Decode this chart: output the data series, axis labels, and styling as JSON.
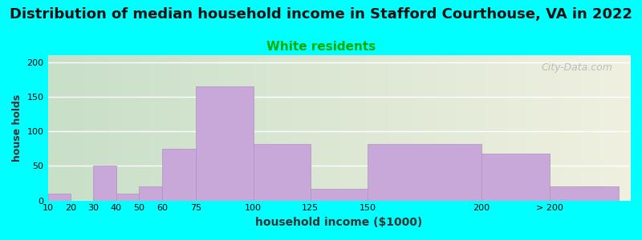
{
  "title": "Distribution of median household income in Stafford Courthouse, VA in 2022",
  "subtitle": "White residents",
  "xlabel": "household income ($1000)",
  "ylabel": "house holds",
  "background_color": "#00FFFF",
  "plot_bg_gradient_left": "#c8e6c9",
  "plot_bg_gradient_right": "#f5f5dc",
  "bar_color": "#c8a8d8",
  "bar_edge_color": "#b090c0",
  "categories": [
    "10",
    "20",
    "30",
    "40",
    "50",
    "60",
    "75",
    "100",
    "125",
    "150",
    "200",
    "> 200"
  ],
  "values": [
    10,
    0,
    50,
    10,
    20,
    75,
    165,
    82,
    17,
    82,
    68,
    20
  ],
  "yticks": [
    0,
    50,
    100,
    150,
    200
  ],
  "title_fontsize": 13,
  "subtitle_fontsize": 11,
  "subtitle_color": "#00aa00",
  "watermark": "City-Data.com"
}
